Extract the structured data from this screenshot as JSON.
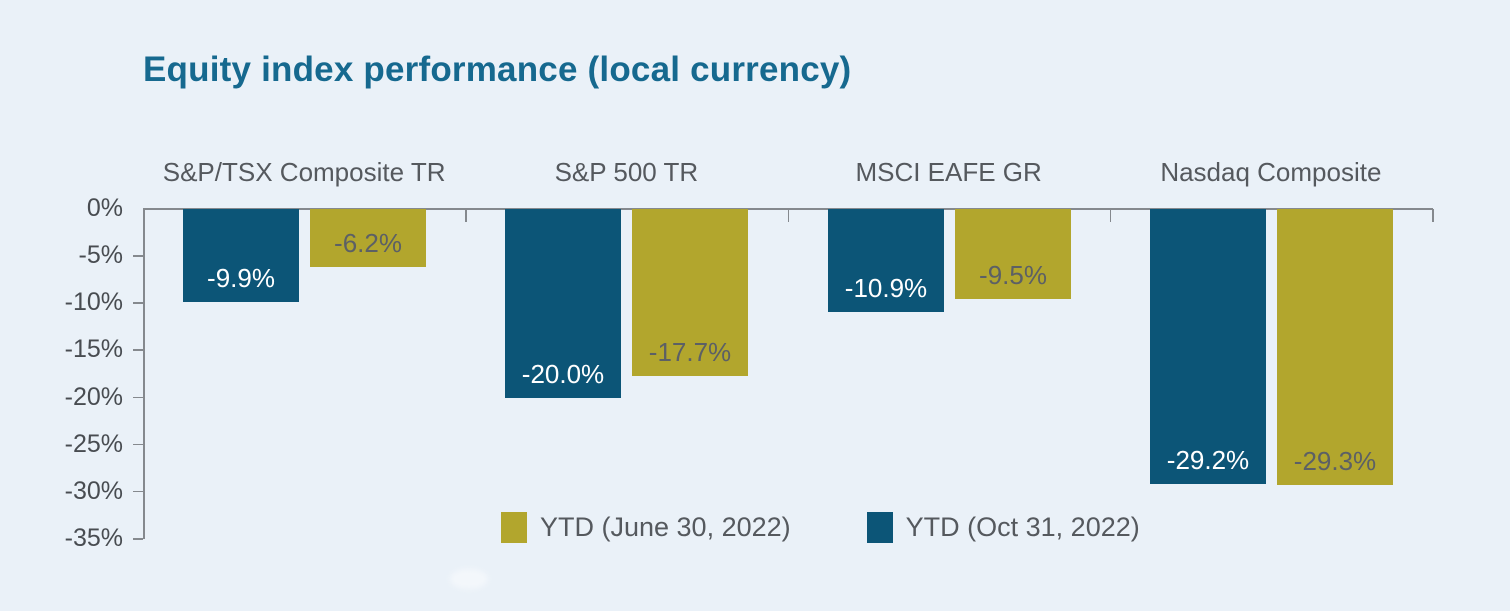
{
  "chart_data": {
    "type": "bar",
    "title": "Equity index performance (local currency)",
    "categories": [
      "S&P/TSX Composite TR",
      "S&P 500 TR",
      "MSCI EAFE GR",
      "Nasdaq Composite"
    ],
    "series": [
      {
        "name": "YTD (Oct 31, 2022)",
        "color": "#0c5577",
        "label_color": "#ffffff",
        "values": [
          -9.9,
          -20.0,
          -10.9,
          -29.2
        ],
        "value_labels": [
          "-9.9%",
          "-20.0%",
          "-10.9%",
          "-29.2%"
        ]
      },
      {
        "name": "YTD (June 30, 2022)",
        "color": "#b2a62d",
        "label_color": "#5c6065",
        "values": [
          -6.2,
          -17.7,
          -9.5,
          -29.3
        ],
        "value_labels": [
          "-6.2%",
          "-17.7%",
          "-9.5%",
          "-29.3%"
        ]
      }
    ],
    "y_axis": {
      "tick_labels": [
        "0%",
        "-5%",
        "-10%",
        "-15%",
        "-20%",
        "-25%",
        "-30%",
        "-35%"
      ],
      "min": -35,
      "max": 0,
      "step": 5,
      "unit": "%"
    },
    "legend": [
      {
        "label": "YTD (June 30, 2022)",
        "color": "#b2a62d"
      },
      {
        "label": "YTD (Oct 31, 2022)",
        "color": "#0c5577"
      }
    ],
    "layout_hints": {
      "grid": "off",
      "legend_position": "bottom-center",
      "bars_orientation": "vertical-negative"
    },
    "colors": {
      "background": "#eaf1f8",
      "title": "#16698f",
      "axis": "#85898e",
      "category_label": "#55595e",
      "tick_label": "#484c51",
      "legend_label": "#55595e"
    }
  }
}
